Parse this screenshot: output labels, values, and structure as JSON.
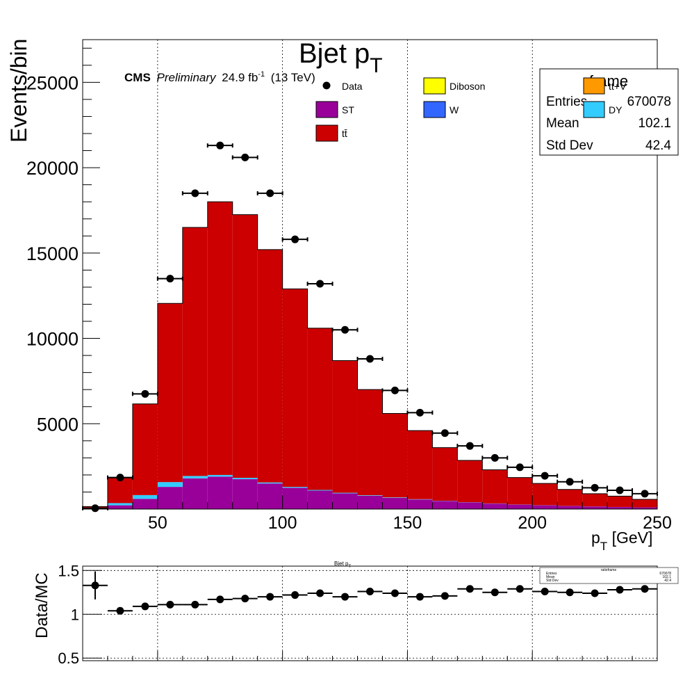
{
  "colors": {
    "ttbar": "#cc0000",
    "st": "#990099",
    "dy": "#33ccff",
    "w": "#3366ff",
    "diboson": "#ffff00",
    "ttv": "#ff9900",
    "data": "#000000"
  },
  "header": {
    "title_main": "Bjet p",
    "title_sub": "T",
    "cms_label": "CMS",
    "preliminary_label": "Preliminary",
    "lumi_value": "24.9 fb",
    "lumi_exp": "-1",
    "energy_label": "(13 TeV)"
  },
  "legend": [
    {
      "key": "data",
      "label": "Data",
      "kind": "marker"
    },
    {
      "key": "diboson",
      "label": "Diboson",
      "kind": "box"
    },
    {
      "key": "ttv",
      "label": "tt+V",
      "kind": "box"
    },
    {
      "key": "st",
      "label": "ST",
      "kind": "box"
    },
    {
      "key": "w",
      "label": "W",
      "kind": "box"
    },
    {
      "key": "dy",
      "label": "DY",
      "kind": "box"
    },
    {
      "key": "ttbar",
      "label": "tt̄",
      "kind": "box"
    }
  ],
  "stats": {
    "title": "frame",
    "rows": [
      {
        "label": "Entries",
        "value": "670078"
      },
      {
        "label": "Mean",
        "value": "102.1"
      },
      {
        "label": "Std Dev",
        "value": "42.4"
      }
    ]
  },
  "ratio": {
    "title_main": "Bjet p",
    "title_sub": "T",
    "ylabel": "Data/MC",
    "stats_title": "ratioframe",
    "stats_rows": [
      {
        "label": "Entries",
        "value": "670078"
      },
      {
        "label": "Mean",
        "value": "102.1"
      },
      {
        "label": "Std Dev",
        "value": "42.4"
      }
    ]
  },
  "chart_data": [
    {
      "type": "bar",
      "stacked": true,
      "ylabel": "Events/bin",
      "xlabel_main": "p",
      "xlabel_sub": "T",
      "xlabel_unit": " [GeV]",
      "xlim": [
        20,
        250
      ],
      "ylim": [
        0,
        27500
      ],
      "xticks": [
        50,
        100,
        150,
        200,
        250
      ],
      "yticks": [
        5000,
        10000,
        15000,
        20000,
        25000
      ],
      "grid_x": true,
      "grid_y": false,
      "bin_edges": [
        20,
        30,
        40,
        50,
        60,
        70,
        80,
        90,
        100,
        110,
        120,
        130,
        140,
        150,
        160,
        170,
        180,
        190,
        200,
        210,
        220,
        230,
        240,
        250
      ],
      "series": [
        {
          "name": "ST",
          "key": "st",
          "values": [
            50,
            220,
            600,
            1300,
            1800,
            1900,
            1750,
            1500,
            1250,
            1080,
            920,
            780,
            660,
            560,
            470,
            390,
            320,
            260,
            220,
            180,
            150,
            120,
            100
          ]
        },
        {
          "name": "DY",
          "key": "dy",
          "values": [
            10,
            130,
            220,
            280,
            140,
            100,
            80,
            60,
            50,
            40,
            35,
            30,
            25,
            20,
            15,
            12,
            10,
            8,
            7,
            6,
            5,
            4,
            3
          ]
        },
        {
          "name": "tt̄",
          "key": "ttbar",
          "values": [
            90,
            1510,
            5340,
            10470,
            14560,
            16000,
            15420,
            13640,
            11600,
            9480,
            7745,
            6190,
            4915,
            4020,
            3115,
            2448,
            1970,
            1582,
            1273,
            964,
            745,
            636,
            467
          ]
        }
      ],
      "data": {
        "name": "Data",
        "x": [
          25,
          35,
          45,
          55,
          65,
          75,
          85,
          95,
          105,
          115,
          125,
          135,
          145,
          155,
          165,
          175,
          185,
          195,
          205,
          215,
          225,
          235,
          245
        ],
        "y": [
          50,
          1850,
          6750,
          13500,
          18500,
          21300,
          20600,
          18500,
          15800,
          13200,
          10500,
          8800,
          6950,
          5650,
          4450,
          3700,
          3000,
          2450,
          1950,
          1600,
          1250,
          1100,
          900
        ]
      }
    },
    {
      "type": "scatter",
      "ylabel": "Data/MC",
      "xlim": [
        20,
        250
      ],
      "ylim": [
        0.47,
        1.55
      ],
      "yticks": [
        0.5,
        1,
        1.5
      ],
      "ytick_labels": [
        "0.5",
        "1",
        "1.5"
      ],
      "grid_x": true,
      "grid_y": true,
      "x": [
        25,
        35,
        45,
        55,
        65,
        75,
        85,
        95,
        105,
        115,
        125,
        135,
        145,
        155,
        165,
        175,
        185,
        195,
        205,
        215,
        225,
        235,
        245
      ],
      "y": [
        1.33,
        1.04,
        1.09,
        1.11,
        1.11,
        1.17,
        1.18,
        1.2,
        1.22,
        1.24,
        1.2,
        1.26,
        1.24,
        1.2,
        1.21,
        1.29,
        1.25,
        1.29,
        1.26,
        1.25,
        1.24,
        1.28,
        1.29
      ],
      "err": [
        0.16,
        0.02,
        0.02,
        0.02,
        0.02,
        0.02,
        0.02,
        0.02,
        0.02,
        0.02,
        0.02,
        0.02,
        0.02,
        0.02,
        0.02,
        0.03,
        0.03,
        0.03,
        0.03,
        0.03,
        0.04,
        0.04,
        0.04
      ]
    }
  ]
}
